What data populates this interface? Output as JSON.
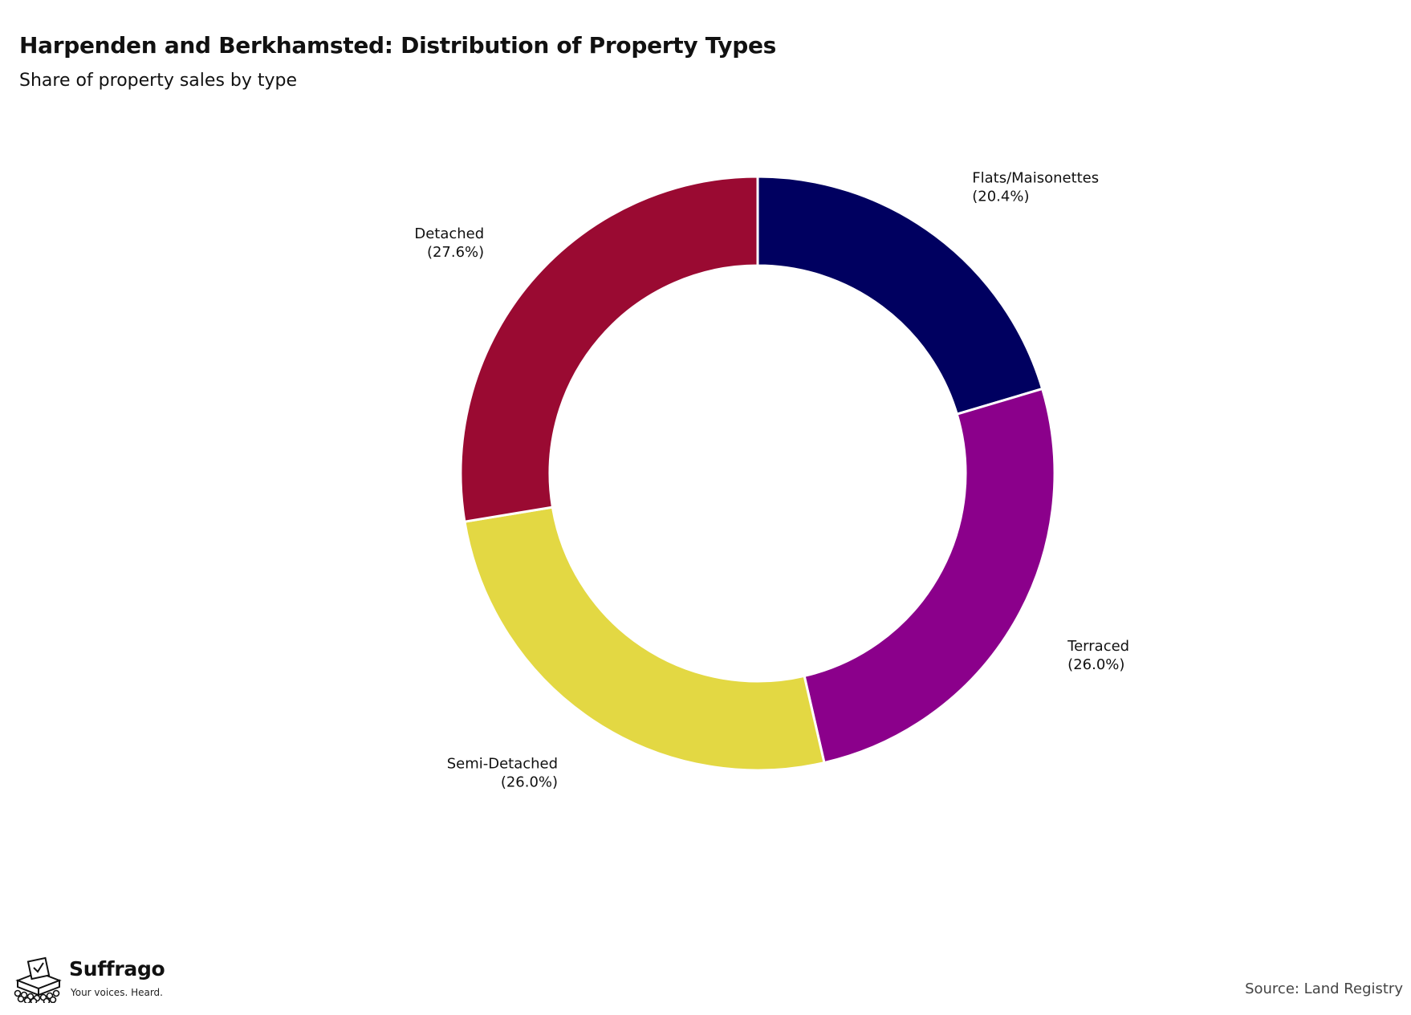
{
  "chart_data": {
    "type": "pie",
    "variant": "donut",
    "title": "Harpenden and Berkhamsted: Distribution of Property Types",
    "subtitle": "Share of property sales by type",
    "slices": [
      {
        "label": "Flats/Maisonettes",
        "value": 20.4,
        "display": "(20.4%)",
        "color": "#000060"
      },
      {
        "label": "Terraced",
        "value": 26.0,
        "display": "(26.0%)",
        "color": "#8b008b"
      },
      {
        "label": "Semi-Detached",
        "value": 26.0,
        "display": "(26.0%)",
        "color": "#e3d843"
      },
      {
        "label": "Detached",
        "value": 27.6,
        "display": "(27.6%)",
        "color": "#9a0a32"
      }
    ],
    "legend": "none",
    "start": "top",
    "direction": "clockwise"
  },
  "branding": {
    "name": "Suffrago",
    "tagline": "Your voices. Heard.",
    "logo_icon": "ballot-box-icon"
  },
  "footer": {
    "source": "Source: Land Registry"
  }
}
